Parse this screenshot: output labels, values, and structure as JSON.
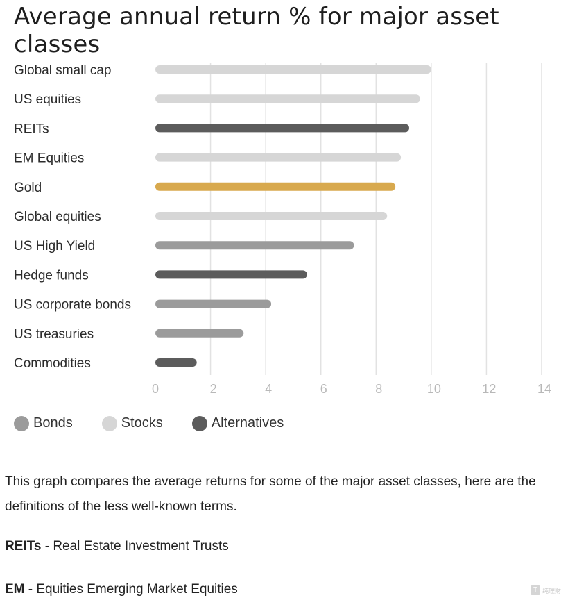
{
  "title": "Average annual return % for major asset classes",
  "chart_data": {
    "type": "bar",
    "orientation": "horizontal",
    "categories": [
      "Global small cap",
      "US equities",
      "REITs",
      "EM Equities",
      "Gold",
      "Global equities",
      "US High Yield",
      "Hedge funds",
      "US corporate bonds",
      "US treasuries",
      "Commodities"
    ],
    "values": [
      10.0,
      9.6,
      9.2,
      8.9,
      8.7,
      8.4,
      7.2,
      5.5,
      4.2,
      3.2,
      1.5
    ],
    "groups": [
      "Stocks",
      "Stocks",
      "Alternatives",
      "Stocks",
      "Gold",
      "Stocks",
      "Bonds",
      "Alternatives",
      "Bonds",
      "Bonds",
      "Alternatives"
    ],
    "colors": {
      "Bonds": "#9b9b9b",
      "Stocks": "#d6d6d6",
      "Alternatives": "#5c5c5c",
      "Gold": "#d8a94e"
    },
    "xlim": [
      0,
      14
    ],
    "xticks": [
      "0",
      "2",
      "4",
      "6",
      "8",
      "10",
      "12",
      "14"
    ],
    "grid": "vertical"
  },
  "legend": [
    {
      "label": "Bonds",
      "color": "#9b9b9b"
    },
    {
      "label": "Stocks",
      "color": "#d6d6d6"
    },
    {
      "label": "Alternatives",
      "color": "#5c5c5c"
    }
  ],
  "description": "This graph compares the average returns for some of the major asset classes, here are the definitions of the less well-known terms.",
  "definitions": [
    {
      "term": "REITs",
      "text": " - Real Estate Investment Trusts"
    },
    {
      "term": "EM",
      "text": " - Equities Emerging Market Equities"
    }
  ],
  "watermark": {
    "mark": "T",
    "text": "纯理财"
  }
}
